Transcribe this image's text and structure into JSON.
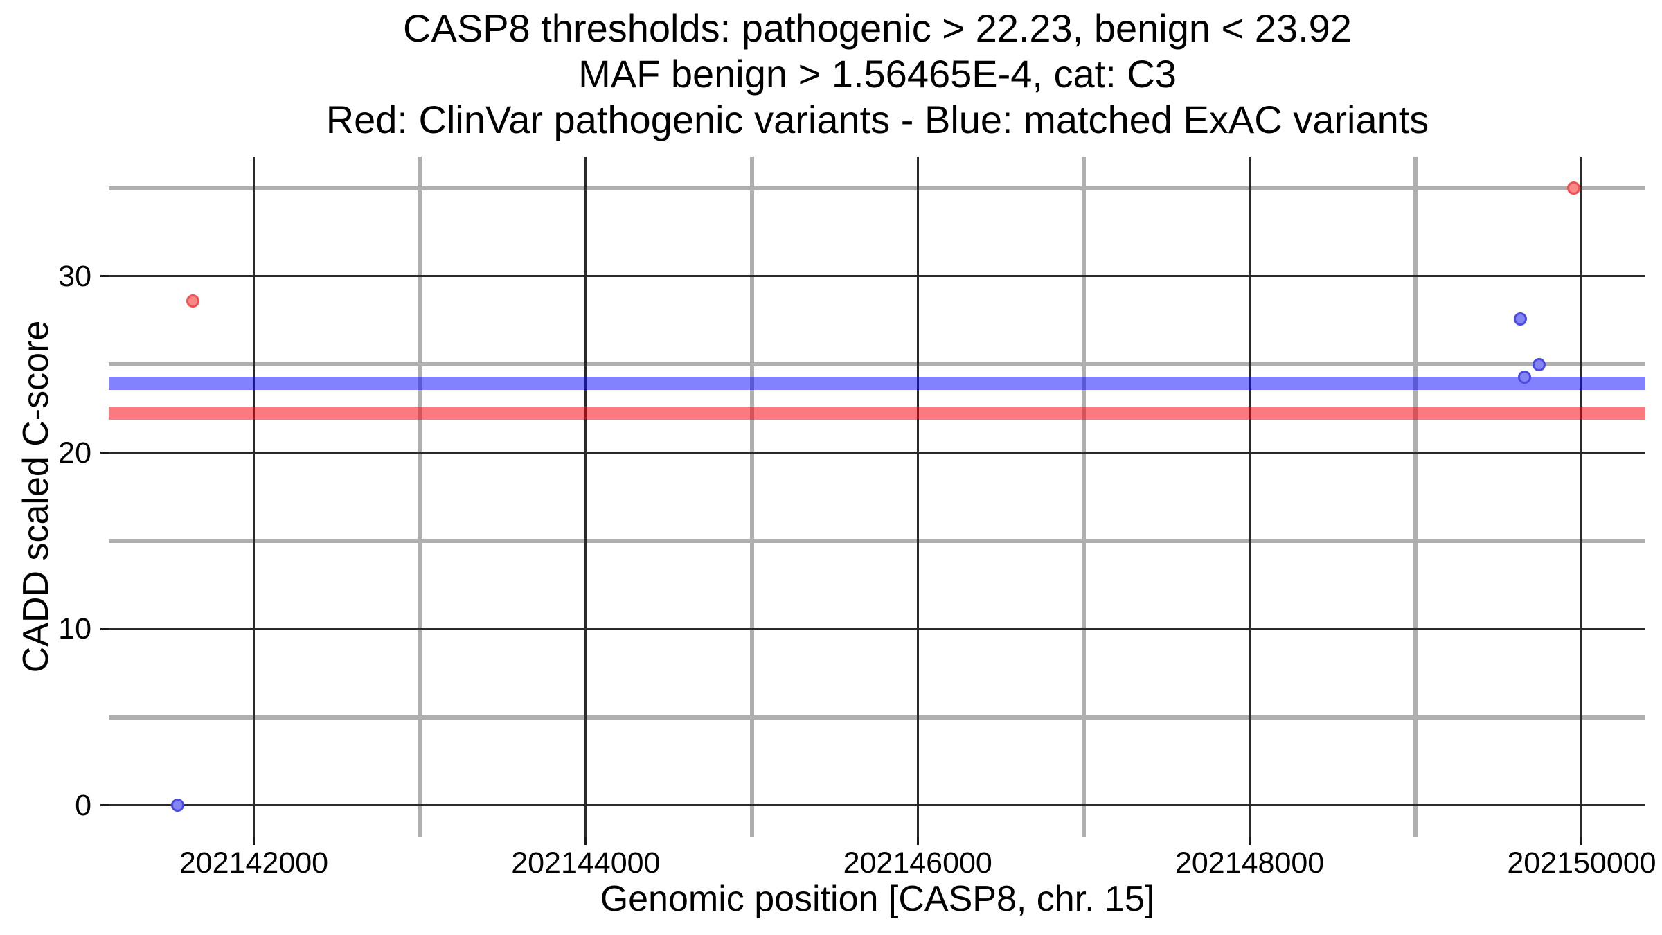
{
  "title": {
    "line1": "CASP8 thresholds: pathogenic > 22.23, benign < 23.92",
    "line2": "MAF benign > 1.56465E-4, cat: C3",
    "line3": "Red: ClinVar pathogenic variants - Blue: matched ExAC variants"
  },
  "chart_data": {
    "type": "scatter",
    "xlabel": "Genomic position [CASP8, chr. 15]",
    "ylabel": "CADD scaled C-score",
    "xlim": [
      202141126,
      202150384
    ],
    "ylim": [
      -1.77,
      36.79
    ],
    "grid": {
      "major_color": "#2A2A2A",
      "minor_color": "#AFAFAF",
      "background": "#FFFFFF"
    },
    "x_major_ticks": [
      {
        "value": 202142000,
        "label": "202142000"
      },
      {
        "value": 202144000,
        "label": "202144000"
      },
      {
        "value": 202146000,
        "label": "202146000"
      },
      {
        "value": 202148000,
        "label": "202148000"
      },
      {
        "value": 202150000,
        "label": "202150000"
      }
    ],
    "x_minor_ticks": [
      202143000,
      202145000,
      202147000,
      202149000
    ],
    "y_major_ticks": [
      {
        "value": 0,
        "label": "0"
      },
      {
        "value": 10,
        "label": "10"
      },
      {
        "value": 20,
        "label": "20"
      },
      {
        "value": 30,
        "label": "30"
      }
    ],
    "y_minor_ticks": [
      5,
      15,
      25,
      35
    ],
    "thresholds": [
      {
        "name": "benign-threshold-band",
        "value": 23.92,
        "color": "rgba(5,5,253,0.50)"
      },
      {
        "name": "pathogenic-threshold-band",
        "value": 22.23,
        "color": "rgba(247,0,12,0.52)"
      }
    ],
    "series": [
      {
        "name": "ClinVar pathogenic variants",
        "fill": "#F98989",
        "stroke": "#F25050",
        "points": [
          {
            "x": 202141631,
            "y": 28.6
          },
          {
            "x": 202149954,
            "y": 35.0
          }
        ]
      },
      {
        "name": "matched ExAC variants",
        "fill": "#8585F2",
        "stroke": "#4A4AE6",
        "points": [
          {
            "x": 202141543,
            "y": 0.0
          },
          {
            "x": 202149633,
            "y": 27.6
          },
          {
            "x": 202149742,
            "y": 25.0
          },
          {
            "x": 202149654,
            "y": 24.3
          }
        ]
      }
    ]
  }
}
